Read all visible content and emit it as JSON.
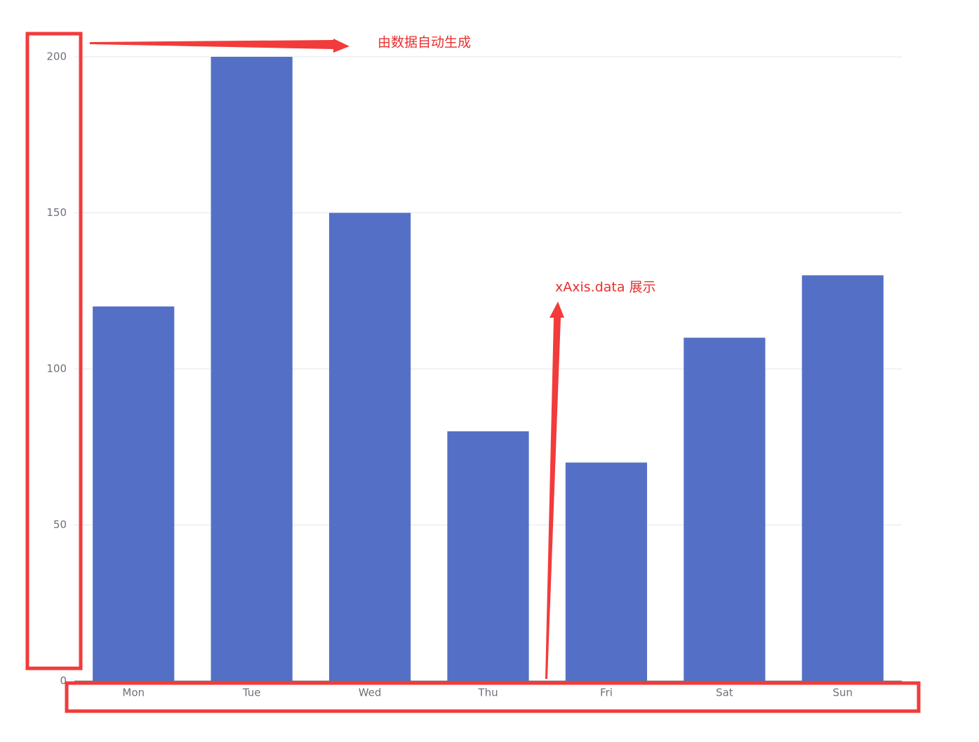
{
  "chart_data": {
    "type": "bar",
    "categories": [
      "Mon",
      "Tue",
      "Wed",
      "Thu",
      "Fri",
      "Sat",
      "Sun"
    ],
    "values": [
      120,
      200,
      150,
      80,
      70,
      110,
      130
    ],
    "color": "#5470c6",
    "ylim": [
      0,
      200
    ],
    "yticks": [
      0,
      50,
      100,
      150,
      200
    ],
    "grid": true,
    "annotations": [
      "由数据自动生成",
      "xAxis.data 展示"
    ]
  }
}
